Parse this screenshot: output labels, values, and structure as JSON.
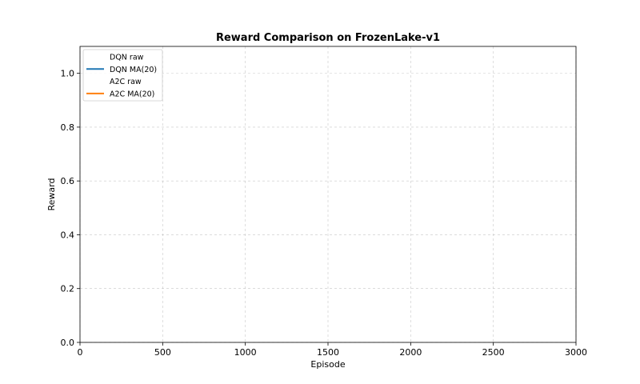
{
  "chart_data": {
    "type": "line",
    "title": "Reward Comparison on FrozenLake-v1",
    "xlabel": "Episode",
    "ylabel": "Reward",
    "xlim": [
      0,
      3000
    ],
    "ylim": [
      0,
      1.1
    ],
    "x_ticks": [
      0,
      500,
      1000,
      1500,
      2000,
      2500,
      3000
    ],
    "x_tick_labels": [
      "0",
      "500",
      "1000",
      "1500",
      "2000",
      "2500",
      "3000"
    ],
    "y_ticks": [
      0.0,
      0.2,
      0.4,
      0.6,
      0.8,
      1.0
    ],
    "y_tick_labels": [
      "0.0",
      "0.2",
      "0.4",
      "0.6",
      "0.8",
      "1.0"
    ],
    "grid": true,
    "legend_position": "top-left",
    "series": [
      {
        "name": "DQN raw",
        "color": "#1f77b4",
        "values": []
      },
      {
        "name": "DQN MA(20)",
        "color": "#1f77b4",
        "values": []
      },
      {
        "name": "A2C raw",
        "color": "#ff7f0e",
        "values": []
      },
      {
        "name": "A2C MA(20)",
        "color": "#ff7f0e",
        "values": []
      }
    ]
  }
}
